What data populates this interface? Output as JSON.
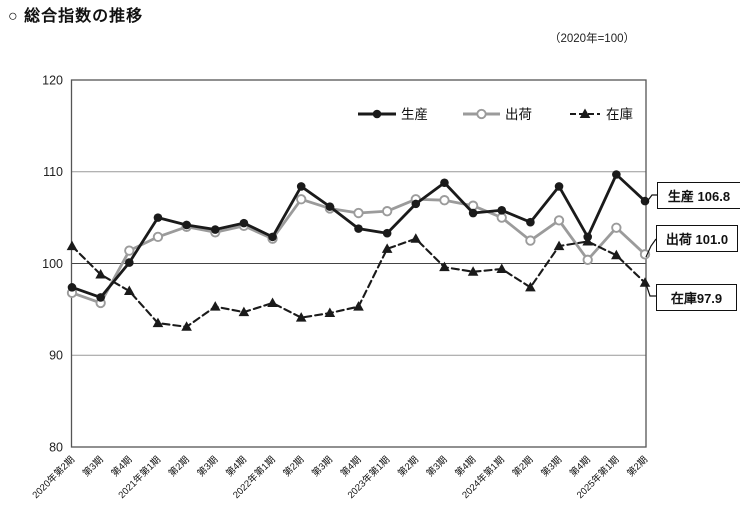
{
  "page": {
    "title": "○ 総合指数の推移",
    "subtitle": "（2020年=100）"
  },
  "chart_data": {
    "type": "line",
    "title": "総合指数の推移",
    "index_base_note": "（2020年=100）",
    "ylim": [
      80,
      120
    ],
    "yticks": [
      80,
      90,
      100,
      110,
      120
    ],
    "reference_line": 100,
    "grid": "horizontal",
    "legend_position": "top-inside",
    "categories": [
      "2020年第2期",
      "第3期",
      "第4期",
      "2021年第1期",
      "第2期",
      "第3期",
      "第4期",
      "2022年第1期",
      "第2期",
      "第3期",
      "第4期",
      "2023年第1期",
      "第2期",
      "第3期",
      "第4期",
      "2024年第1期",
      "第2期",
      "第3期",
      "第4期",
      "2025年第1期",
      "第2期"
    ],
    "series": [
      {
        "name": "生産",
        "color": "#1a1a1a",
        "line_style": "solid",
        "marker": "filled-circle",
        "values": [
          97.4,
          96.3,
          100.1,
          105.0,
          104.2,
          103.7,
          104.4,
          102.9,
          108.4,
          106.2,
          103.8,
          103.3,
          106.5,
          108.8,
          105.5,
          105.8,
          104.5,
          108.4,
          102.9,
          109.7,
          106.8
        ]
      },
      {
        "name": "出荷",
        "color": "#9b9b9b",
        "line_style": "solid",
        "marker": "open-circle",
        "values": [
          96.8,
          95.7,
          101.4,
          102.9,
          104.0,
          103.4,
          104.1,
          102.7,
          107.0,
          106.0,
          105.5,
          105.7,
          107.0,
          106.9,
          106.3,
          105.0,
          102.5,
          104.7,
          100.4,
          103.9,
          101.0
        ]
      },
      {
        "name": "在庫",
        "color": "#1a1a1a",
        "line_style": "dashed",
        "marker": "filled-triangle",
        "values": [
          101.9,
          98.8,
          97.0,
          93.5,
          93.1,
          95.3,
          94.7,
          95.7,
          94.1,
          94.6,
          95.3,
          101.6,
          102.7,
          99.6,
          99.1,
          99.4,
          97.4,
          101.9,
          102.4,
          100.9,
          97.9
        ]
      }
    ],
    "annotations": [
      {
        "label": "生産 106.8"
      },
      {
        "label": "出荷 101.0"
      },
      {
        "label": "在庫97.9"
      }
    ]
  }
}
